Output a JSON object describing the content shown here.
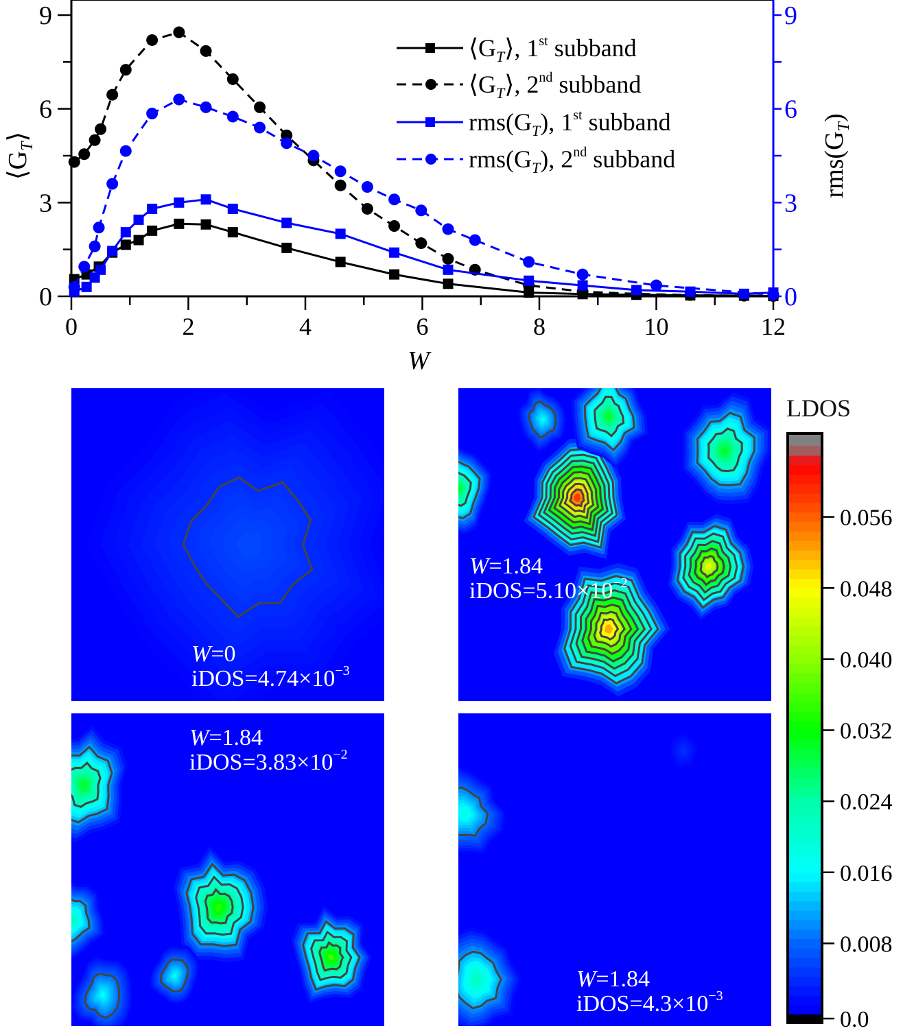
{
  "chart_data": [
    {
      "type": "line",
      "title": "",
      "xlabel": "W",
      "ylabel_left": "⟨G_T⟩",
      "ylabel_right": "rms(G_T)",
      "xlim": [
        0,
        12
      ],
      "ylim_left": [
        0,
        9
      ],
      "ylim_right": [
        0,
        9
      ],
      "x_ticks": [
        "0",
        "2",
        "4",
        "6",
        "8",
        "10",
        "12"
      ],
      "y_ticks_left": [
        "0",
        "3",
        "6",
        "9"
      ],
      "y_ticks_right": [
        "0",
        "3",
        "6",
        "9"
      ],
      "grid": false,
      "legend_position": "top-right",
      "colors": {
        "black": "#000000",
        "blue": "#0000ff"
      },
      "series": [
        {
          "name": "⟨G_T⟩, 1st subband",
          "label_parts": {
            "main": "⟨G",
            "sub": "T",
            "post": "⟩, 1",
            "sup": "st",
            "tail": " subband"
          },
          "color": "#000000",
          "dash": "solid",
          "marker": "square",
          "axis": "left",
          "x": [
            0.05,
            0.26,
            0.47,
            0.7,
            0.93,
            1.15,
            1.38,
            1.84,
            2.3,
            2.76,
            3.68,
            4.6,
            5.52,
            6.44,
            7.82,
            8.74,
            9.66,
            10.58,
            11.5,
            12.0
          ],
          "y": [
            0.55,
            0.7,
            0.95,
            1.4,
            1.65,
            1.8,
            2.1,
            2.32,
            2.3,
            2.05,
            1.55,
            1.1,
            0.7,
            0.4,
            0.12,
            0.07,
            0.05,
            0.03,
            0.02,
            0.01
          ]
        },
        {
          "name": "⟨G_T⟩, 2nd subband",
          "label_parts": {
            "main": "⟨G",
            "sub": "T",
            "post": "⟩, 2",
            "sup": "nd",
            "tail": " subband"
          },
          "color": "#000000",
          "dash": "dashed",
          "marker": "circle",
          "axis": "left",
          "x": [
            0.05,
            0.22,
            0.4,
            0.5,
            0.7,
            0.93,
            1.38,
            1.84,
            2.3,
            2.76,
            3.22,
            3.68,
            4.14,
            4.6,
            5.06,
            5.52,
            5.98,
            6.44,
            6.9,
            7.82,
            8.74,
            9.66,
            10.58,
            11.5,
            12.0
          ],
          "y": [
            4.3,
            4.55,
            5.0,
            5.35,
            6.45,
            7.25,
            8.2,
            8.45,
            7.85,
            6.95,
            6.05,
            5.15,
            4.35,
            3.55,
            2.8,
            2.25,
            1.7,
            1.2,
            0.85,
            0.35,
            0.15,
            0.08,
            0.04,
            0.02,
            0.01
          ]
        },
        {
          "name": "rms(G_T), 1st subband",
          "label_parts": {
            "main": "rms(G",
            "sub": "T",
            "post": "), 1",
            "sup": "st",
            "tail": " subband"
          },
          "color": "#0000ff",
          "dash": "solid",
          "marker": "square",
          "axis": "right",
          "x": [
            0.05,
            0.26,
            0.4,
            0.5,
            0.7,
            0.93,
            1.15,
            1.38,
            1.84,
            2.3,
            2.76,
            3.68,
            4.6,
            5.52,
            6.44,
            7.82,
            8.74,
            9.66,
            10.58,
            11.5,
            12.0
          ],
          "y": [
            0.15,
            0.3,
            0.6,
            0.85,
            1.45,
            2.05,
            2.45,
            2.8,
            3.0,
            3.1,
            2.8,
            2.35,
            2.0,
            1.4,
            0.85,
            0.5,
            0.35,
            0.2,
            0.15,
            0.08,
            0.12
          ]
        },
        {
          "name": "rms(G_T), 2nd subband",
          "label_parts": {
            "main": "rms(G",
            "sub": "T",
            "post": "), 2",
            "sup": "nd",
            "tail": " subband"
          },
          "color": "#0000ff",
          "dash": "dashed",
          "marker": "circle",
          "axis": "right",
          "x": [
            0.05,
            0.22,
            0.4,
            0.47,
            0.7,
            0.93,
            1.38,
            1.84,
            2.3,
            2.76,
            3.22,
            3.68,
            4.14,
            4.6,
            5.06,
            5.52,
            5.98,
            6.44,
            6.9,
            7.82,
            8.74,
            10.0,
            12.0
          ],
          "y": [
            0.3,
            0.95,
            1.6,
            2.2,
            3.6,
            4.65,
            5.85,
            6.3,
            6.05,
            5.75,
            5.4,
            4.9,
            4.5,
            4.0,
            3.5,
            3.1,
            2.75,
            2.15,
            1.8,
            1.1,
            0.7,
            0.35,
            0.05
          ]
        }
      ]
    },
    {
      "type": "heatmap",
      "title": "LDOS",
      "colorbar": {
        "label": "LDOS",
        "range": [
          0.0,
          0.064
        ],
        "ticks": [
          "0.0",
          "0.008",
          "0.016",
          "0.024",
          "0.032",
          "0.040",
          "0.048",
          "0.056"
        ],
        "tick_values": [
          0.0,
          0.008,
          0.016,
          0.024,
          0.032,
          0.04,
          0.048,
          0.056
        ],
        "colors": [
          "#000000",
          "#0000ff",
          "#0066ff",
          "#00ccff",
          "#00ffcc",
          "#00ff00",
          "#aaff00",
          "#ffff00",
          "#ffaa00",
          "#ff5500",
          "#ff0000",
          "#808080"
        ]
      },
      "panels": [
        {
          "id": "top-left",
          "W": "0",
          "iDOS_mantissa": "4.74",
          "iDOS_exp": "−3",
          "blobs": [
            {
              "cx": 0.57,
              "cy": 0.5,
              "r": 0.55,
              "peak": 0.006,
              "contours": 1
            }
          ]
        },
        {
          "id": "top-right",
          "W": "1.84",
          "iDOS_mantissa": "5.10",
          "iDOS_exp": "−2",
          "blobs": [
            {
              "cx": 0.38,
              "cy": 0.35,
              "r": 0.16,
              "peak": 0.058,
              "contours": 8
            },
            {
              "cx": 0.48,
              "cy": 0.77,
              "r": 0.17,
              "peak": 0.052,
              "contours": 7
            },
            {
              "cx": 0.8,
              "cy": 0.57,
              "r": 0.13,
              "peak": 0.046,
              "contours": 5
            },
            {
              "cx": 0.85,
              "cy": 0.2,
              "r": 0.14,
              "peak": 0.03,
              "contours": 2
            },
            {
              "cx": 0.48,
              "cy": 0.09,
              "r": 0.12,
              "peak": 0.03,
              "contours": 2
            },
            {
              "cx": 0.27,
              "cy": 0.1,
              "r": 0.08,
              "peak": 0.016,
              "contours": 1
            },
            {
              "cx": 0.0,
              "cy": 0.32,
              "r": 0.11,
              "peak": 0.03,
              "contours": 2
            }
          ]
        },
        {
          "id": "bottom-left",
          "W": "1.84",
          "iDOS_mantissa": "3.83",
          "iDOS_exp": "−2",
          "blobs": [
            {
              "cx": 0.04,
              "cy": 0.23,
              "r": 0.14,
              "peak": 0.03,
              "contours": 2
            },
            {
              "cx": 0.47,
              "cy": 0.62,
              "r": 0.14,
              "peak": 0.034,
              "contours": 3
            },
            {
              "cx": 0.83,
              "cy": 0.78,
              "r": 0.12,
              "peak": 0.035,
              "contours": 3
            },
            {
              "cx": 0.0,
              "cy": 0.66,
              "r": 0.1,
              "peak": 0.022,
              "contours": 1
            },
            {
              "cx": 0.1,
              "cy": 0.9,
              "r": 0.1,
              "peak": 0.016,
              "contours": 1
            },
            {
              "cx": 0.33,
              "cy": 0.84,
              "r": 0.08,
              "peak": 0.016,
              "contours": 1
            }
          ]
        },
        {
          "id": "bottom-right",
          "W": "1.84",
          "iDOS_mantissa": "4.3",
          "iDOS_exp": "−3",
          "blobs": [
            {
              "cx": 0.02,
              "cy": 0.32,
              "r": 0.12,
              "peak": 0.018,
              "contours": 1
            },
            {
              "cx": 0.06,
              "cy": 0.85,
              "r": 0.13,
              "peak": 0.022,
              "contours": 1
            },
            {
              "cx": 0.72,
              "cy": 0.12,
              "r": 0.06,
              "peak": 0.004,
              "contours": 0
            }
          ]
        }
      ],
      "label_prefix_W": "W",
      "label_eq": "=",
      "label_prefix_iDOS": "iDOS=",
      "label_times": "×10"
    }
  ]
}
